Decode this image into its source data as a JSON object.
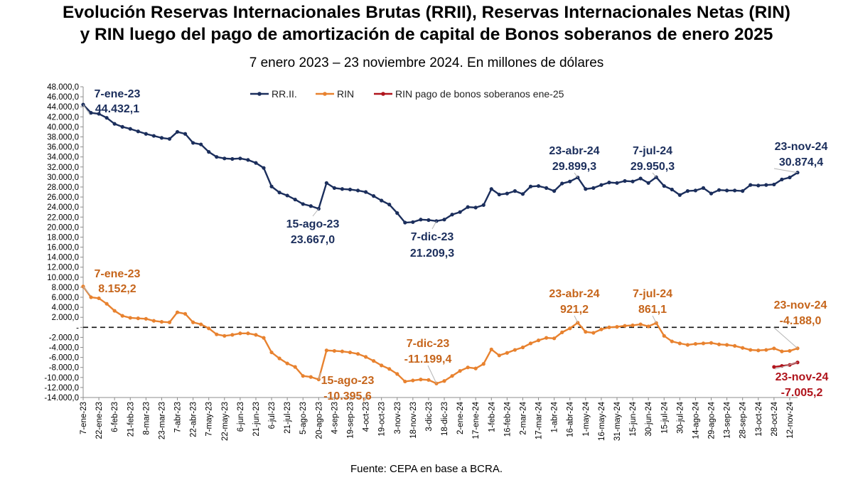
{
  "title_line1": "Evolución Reservas Internacionales Brutas (RRII), Reservas Internacionales Netas (RIN)",
  "title_line2": "y RIN luego del pago de amortización de capital de Bonos soberanos de enero 2025",
  "subtitle": "7 enero 2023 – 23 noviembre 2024. En millones de dólares",
  "source": "Fuente: CEPA en base a BCRA.",
  "colors": {
    "rrii": "#1b2e5c",
    "rin": "#e8822f",
    "rin_pago": "#b0141c",
    "ann_rrii": "#1b2e5c",
    "ann_rin": "#c6651b",
    "ann_pago": "#b0141c"
  },
  "chart_data": {
    "type": "line",
    "ylim": [
      -14000,
      48000
    ],
    "ytick_step": 2000,
    "yticks": [
      "-14.000,0",
      "-12.000,0",
      "-10.000,0",
      "-8.000,0",
      "-6.000,0",
      "-4.000,0",
      "-2.000,0",
      "-",
      "2.000,0",
      "4.000,0",
      "6.000,0",
      "8.000,0",
      "10.000,0",
      "12.000,0",
      "14.000,0",
      "16.000,0",
      "18.000,0",
      "20.000,0",
      "22.000,0",
      "24.000,0",
      "26.000,0",
      "28.000,0",
      "30.000,0",
      "32.000,0",
      "34.000,0",
      "36.000,0",
      "38.000,0",
      "40.000,0",
      "42.000,0",
      "44.000,0",
      "46.000,0",
      "48.000,0"
    ],
    "xticks": [
      "7-ene-23",
      "22-ene-23",
      "6-feb-23",
      "21-feb-23",
      "8-mar-23",
      "23-mar-23",
      "7-abr-23",
      "22-abr-23",
      "7-may-23",
      "22-may-23",
      "6-jun-23",
      "21-jun-23",
      "6-jul-23",
      "21-jul-23",
      "5-ago-23",
      "20-ago-23",
      "4-sep-23",
      "19-sep-23",
      "4-oct-23",
      "19-oct-23",
      "3-nov-23",
      "18-nov-23",
      "3-dic-23",
      "18-dic-23",
      "2-ene-24",
      "17-ene-24",
      "1-feb-24",
      "16-feb-24",
      "2-mar-24",
      "17-mar-24",
      "1-abr-24",
      "16-abr-24",
      "1-may-24",
      "16-may-24",
      "31-may-24",
      "15-jun-24",
      "30-jun-24",
      "15-jul-24",
      "30-jul-24",
      "14-ago-24",
      "29-ago-24",
      "13-sep-24",
      "28-sep-24",
      "13-oct-24",
      "28-oct-24",
      "12-nov-24"
    ],
    "grid": false,
    "legend_position": "top",
    "series": [
      {
        "name": "RR.II.",
        "values": [
          44432,
          42800,
          42600,
          41800,
          40600,
          40000,
          39600,
          39100,
          38600,
          38200,
          37800,
          37600,
          39000,
          38600,
          36800,
          36500,
          35000,
          34000,
          33700,
          33600,
          33700,
          33400,
          32800,
          31800,
          28100,
          26900,
          26300,
          25500,
          24600,
          24200,
          23667,
          28800,
          27800,
          27600,
          27500,
          27300,
          27000,
          26200,
          25300,
          24500,
          22800,
          20900,
          21000,
          21500,
          21400,
          21209,
          21500,
          22500,
          23000,
          24000,
          23900,
          24400,
          27600,
          26500,
          26700,
          27200,
          26600,
          28100,
          28200,
          27800,
          27200,
          28700,
          29100,
          29899,
          27600,
          27800,
          28400,
          28900,
          28800,
          29200,
          29100,
          29700,
          28800,
          29950,
          28200,
          27500,
          26400,
          27200,
          27300,
          27800,
          26700,
          27400,
          27300,
          27300,
          27200,
          28400,
          28300,
          28400,
          28500,
          29500,
          29900,
          30874
        ]
      },
      {
        "name": "RIN",
        "values": [
          8152,
          6000,
          5800,
          4700,
          3300,
          2300,
          1900,
          1800,
          1700,
          1300,
          1100,
          1000,
          3000,
          2700,
          1000,
          600,
          -200,
          -1400,
          -1700,
          -1500,
          -1200,
          -1200,
          -1500,
          -2100,
          -5000,
          -6200,
          -7200,
          -7900,
          -9700,
          -9900,
          -10396,
          -4600,
          -4700,
          -4800,
          -5000,
          -5300,
          -5900,
          -6700,
          -7600,
          -8300,
          -9300,
          -10800,
          -10600,
          -10400,
          -10500,
          -11199,
          -10700,
          -9700,
          -8700,
          -8000,
          -8200,
          -7300,
          -4400,
          -5600,
          -5100,
          -4500,
          -4000,
          -3200,
          -2600,
          -2100,
          -2200,
          -1000,
          -200,
          921,
          -900,
          -1100,
          -400,
          0,
          100,
          300,
          400,
          600,
          200,
          861,
          -1700,
          -2800,
          -3200,
          -3500,
          -3300,
          -3200,
          -3100,
          -3400,
          -3500,
          -3700,
          -4100,
          -4500,
          -4600,
          -4500,
          -4200,
          -4800,
          -4700,
          -4188
        ]
      },
      {
        "name": "RIN pago de bonos soberanos ene-25",
        "x_index": [
          88,
          89,
          90,
          91
        ],
        "values": [
          -7900,
          -7700,
          -7500,
          -7005
        ]
      }
    ],
    "annotations": [
      {
        "series": 0,
        "index": 0,
        "date": "7-ene-23",
        "value": "44.432,1"
      },
      {
        "series": 0,
        "index": 30,
        "date": "15-ago-23",
        "value": "23.667,0"
      },
      {
        "series": 0,
        "index": 45,
        "date": "7-dic-23",
        "value": "21.209,3"
      },
      {
        "series": 0,
        "index": 63,
        "date": "23-abr-24",
        "value": "29.899,3"
      },
      {
        "series": 0,
        "index": 73,
        "date": "7-jul-24",
        "value": "29.950,3"
      },
      {
        "series": 0,
        "index": 91,
        "date": "23-nov-24",
        "value": "30.874,4"
      },
      {
        "series": 1,
        "index": 0,
        "date": "7-ene-23",
        "value": "8.152,2"
      },
      {
        "series": 1,
        "index": 30,
        "date": "15-ago-23",
        "value": "-10.395,6"
      },
      {
        "series": 1,
        "index": 45,
        "date": "7-dic-23",
        "value": "-11.199,4"
      },
      {
        "series": 1,
        "index": 63,
        "date": "23-abr-24",
        "value": "921,2"
      },
      {
        "series": 1,
        "index": 73,
        "date": "7-jul-24",
        "value": "861,1"
      },
      {
        "series": 1,
        "index": 91,
        "date": "23-nov-24",
        "value": "-4.188,0"
      },
      {
        "series": 2,
        "index": 3,
        "date": "23-nov-24",
        "value": "-7.005,2"
      }
    ]
  }
}
